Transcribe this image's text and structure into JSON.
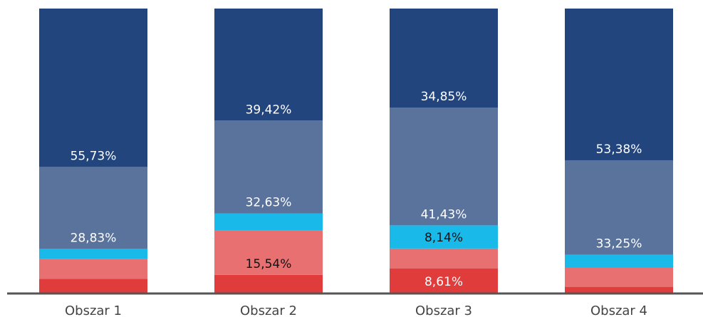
{
  "chart_data": {
    "type": "stacked_bar",
    "categories": [
      "Obszar 1",
      "Obszar 2",
      "Obszar 3",
      "Obszar 4"
    ],
    "ylim": [
      0,
      100
    ],
    "series": [
      {
        "color": "#e03c3c",
        "label_color": "#ffffff",
        "values": [
          4.94,
          6.3,
          8.61,
          2.1
        ],
        "value_labels": [
          null,
          null,
          "8,61%",
          null
        ]
      },
      {
        "color": "#e87070",
        "label_color": "#111111",
        "values": [
          7.0,
          15.54,
          6.97,
          6.8
        ],
        "value_labels": [
          null,
          "15,54%",
          null,
          null
        ]
      },
      {
        "color": "#19b9ea",
        "label_color": "#111111",
        "values": [
          3.5,
          6.11,
          8.14,
          4.47
        ],
        "value_labels": [
          null,
          null,
          "8,14%",
          null
        ]
      },
      {
        "color": "#5a739d",
        "label_color": "#ffffff",
        "values": [
          28.83,
          32.63,
          41.43,
          33.25
        ],
        "value_labels": [
          "28,83%",
          "32,63%",
          "41,43%",
          "33,25%"
        ]
      },
      {
        "color": "#23457e",
        "label_color": "#ffffff",
        "values": [
          55.73,
          39.42,
          34.85,
          53.38
        ],
        "value_labels": [
          "55,73%",
          "39,42%",
          "34,85%",
          "53,38%"
        ]
      }
    ]
  }
}
